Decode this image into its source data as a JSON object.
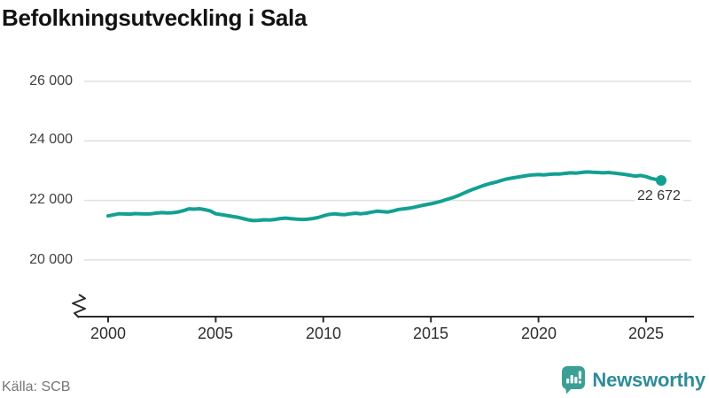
{
  "title": "Befolkningsutveckling i Sala",
  "source": "Källa: SCB",
  "logo": {
    "text": "Newsworthy",
    "icon": "newsworthy-bar-chart-speech-bubble-icon",
    "icon_color": "#3aa096",
    "text_color": "#2e8c99"
  },
  "colors": {
    "line": "#12a092",
    "grid": "#e0e0e0",
    "axis": "#2b2b2b"
  },
  "chart_data": {
    "type": "line",
    "title": "Befolkningsutveckling i Sala",
    "xlabel": "",
    "ylabel": "",
    "grid": "horizontal",
    "legend": "none",
    "y_axis_broken": true,
    "ylim": [
      20000,
      26000
    ],
    "xlim": [
      2000,
      2025.7
    ],
    "y_ticks": [
      26000,
      24000,
      22000,
      20000
    ],
    "y_tick_labels": [
      "26 000",
      "24 000",
      "22 000",
      "20 000"
    ],
    "x_ticks": [
      2000,
      2005,
      2010,
      2015,
      2020,
      2025
    ],
    "x_tick_labels": [
      "2000",
      "2005",
      "2010",
      "2015",
      "2020",
      "2025"
    ],
    "end_label": "22 672",
    "end_value": 22672,
    "series": [
      {
        "color": "#12a092",
        "points": [
          [
            2000.0,
            21480
          ],
          [
            2000.25,
            21515
          ],
          [
            2000.5,
            21550
          ],
          [
            2000.75,
            21545
          ],
          [
            2001.0,
            21540
          ],
          [
            2001.25,
            21558
          ],
          [
            2001.5,
            21552
          ],
          [
            2001.75,
            21545
          ],
          [
            2002.0,
            21552
          ],
          [
            2002.25,
            21575
          ],
          [
            2002.5,
            21590
          ],
          [
            2002.75,
            21582
          ],
          [
            2003.0,
            21588
          ],
          [
            2003.25,
            21612
          ],
          [
            2003.5,
            21655
          ],
          [
            2003.75,
            21718
          ],
          [
            2004.0,
            21705
          ],
          [
            2004.25,
            21722
          ],
          [
            2004.5,
            21688
          ],
          [
            2004.75,
            21645
          ],
          [
            2005.0,
            21552
          ],
          [
            2005.25,
            21525
          ],
          [
            2005.5,
            21495
          ],
          [
            2005.75,
            21465
          ],
          [
            2006.0,
            21435
          ],
          [
            2006.25,
            21395
          ],
          [
            2006.5,
            21350
          ],
          [
            2006.75,
            21322
          ],
          [
            2007.0,
            21330
          ],
          [
            2007.25,
            21348
          ],
          [
            2007.5,
            21342
          ],
          [
            2007.75,
            21362
          ],
          [
            2008.0,
            21392
          ],
          [
            2008.25,
            21405
          ],
          [
            2008.5,
            21388
          ],
          [
            2008.75,
            21370
          ],
          [
            2009.0,
            21360
          ],
          [
            2009.25,
            21368
          ],
          [
            2009.5,
            21392
          ],
          [
            2009.75,
            21425
          ],
          [
            2010.0,
            21480
          ],
          [
            2010.25,
            21528
          ],
          [
            2010.5,
            21548
          ],
          [
            2010.75,
            21532
          ],
          [
            2011.0,
            21522
          ],
          [
            2011.25,
            21552
          ],
          [
            2011.5,
            21568
          ],
          [
            2011.75,
            21550
          ],
          [
            2012.0,
            21572
          ],
          [
            2012.25,
            21608
          ],
          [
            2012.5,
            21638
          ],
          [
            2012.75,
            21622
          ],
          [
            2013.0,
            21612
          ],
          [
            2013.25,
            21650
          ],
          [
            2013.5,
            21698
          ],
          [
            2013.75,
            21718
          ],
          [
            2014.0,
            21738
          ],
          [
            2014.25,
            21775
          ],
          [
            2014.5,
            21815
          ],
          [
            2014.75,
            21855
          ],
          [
            2015.0,
            21888
          ],
          [
            2015.25,
            21928
          ],
          [
            2015.5,
            21975
          ],
          [
            2015.75,
            22035
          ],
          [
            2016.0,
            22090
          ],
          [
            2016.25,
            22155
          ],
          [
            2016.5,
            22235
          ],
          [
            2016.75,
            22315
          ],
          [
            2017.0,
            22385
          ],
          [
            2017.25,
            22448
          ],
          [
            2017.5,
            22515
          ],
          [
            2017.75,
            22568
          ],
          [
            2018.0,
            22608
          ],
          [
            2018.25,
            22665
          ],
          [
            2018.5,
            22715
          ],
          [
            2018.75,
            22748
          ],
          [
            2019.0,
            22778
          ],
          [
            2019.25,
            22808
          ],
          [
            2019.5,
            22838
          ],
          [
            2019.75,
            22858
          ],
          [
            2020.0,
            22868
          ],
          [
            2020.25,
            22858
          ],
          [
            2020.5,
            22878
          ],
          [
            2020.75,
            22888
          ],
          [
            2021.0,
            22888
          ],
          [
            2021.25,
            22908
          ],
          [
            2021.5,
            22928
          ],
          [
            2021.75,
            22918
          ],
          [
            2022.0,
            22938
          ],
          [
            2022.25,
            22958
          ],
          [
            2022.5,
            22948
          ],
          [
            2022.75,
            22938
          ],
          [
            2023.0,
            22928
          ],
          [
            2023.25,
            22938
          ],
          [
            2023.5,
            22918
          ],
          [
            2023.75,
            22898
          ],
          [
            2024.0,
            22878
          ],
          [
            2024.25,
            22848
          ],
          [
            2024.5,
            22818
          ],
          [
            2024.75,
            22838
          ],
          [
            2025.0,
            22798
          ],
          [
            2025.25,
            22738
          ],
          [
            2025.5,
            22698
          ],
          [
            2025.7,
            22672
          ]
        ]
      }
    ]
  }
}
